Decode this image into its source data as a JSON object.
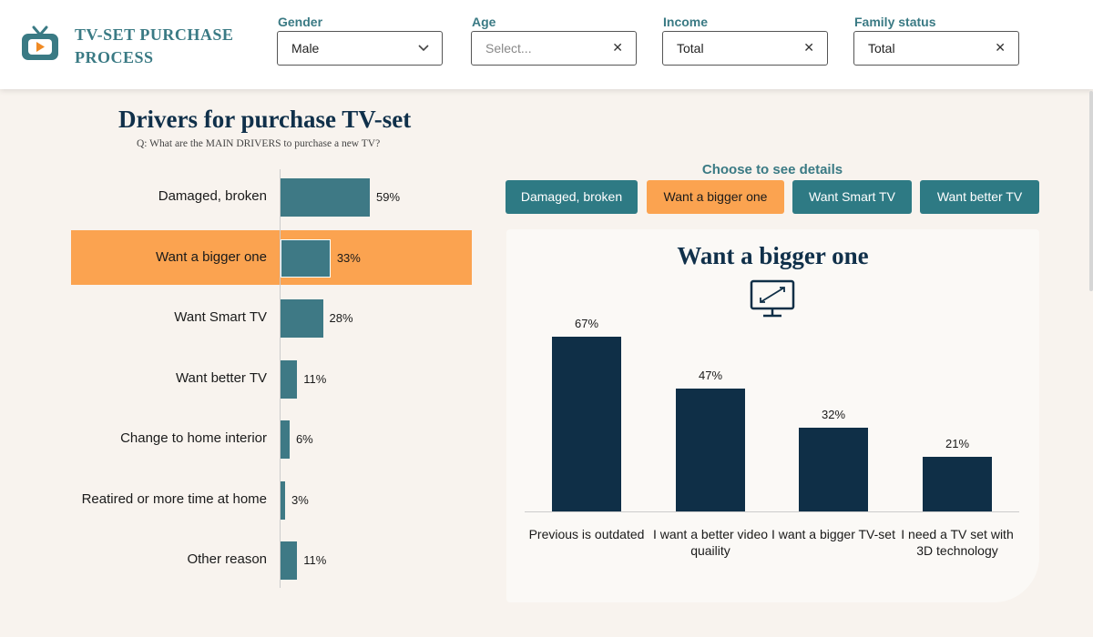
{
  "app": {
    "title": "TV-SET PURCHASE PROCESS",
    "logo_icon": "tv-play-icon"
  },
  "filters": [
    {
      "label": "Gender",
      "value": "Male",
      "placeholder": "",
      "control": "chevron-down-icon"
    },
    {
      "label": "Age",
      "value": "",
      "placeholder": "Select...",
      "control": "clear-icon"
    },
    {
      "label": "Income",
      "value": "Total",
      "placeholder": "",
      "control": "clear-icon"
    },
    {
      "label": "Family status",
      "value": "Total",
      "placeholder": "",
      "control": "clear-icon"
    }
  ],
  "drivers_chart": {
    "title": "Drivers for purchase TV-set",
    "subtitle": "Q: What are the MAIN DRIVERS to purchase a new TV?",
    "selected_index": 1,
    "items": [
      {
        "label": "Damaged, broken",
        "value": 59,
        "display": "59%"
      },
      {
        "label": "Want a bigger one",
        "value": 33,
        "display": "33%"
      },
      {
        "label": "Want Smart TV",
        "value": 28,
        "display": "28%"
      },
      {
        "label": "Want better TV",
        "value": 11,
        "display": "11%"
      },
      {
        "label": "Change to home interior",
        "value": 6,
        "display": "6%"
      },
      {
        "label": "Reatired or more time at home",
        "value": 3,
        "display": "3%"
      },
      {
        "label": "Other reason",
        "value": 11,
        "display": "11%"
      }
    ]
  },
  "details": {
    "choose_label": "Choose to see details",
    "buttons": [
      "Damaged, broken",
      "Want a bigger one",
      "Want Smart TV",
      "Want better TV"
    ],
    "active_button": 1,
    "title": "Want a bigger one",
    "icon": "monitor-resize-icon",
    "items": [
      {
        "label": "Previous is outdated",
        "value": 67,
        "display": "67%"
      },
      {
        "label": "I want a better video quaility",
        "value": 47,
        "display": "47%"
      },
      {
        "label": "I want a bigger TV-set",
        "value": 32,
        "display": "32%"
      },
      {
        "label": "I need a TV set with 3D technology",
        "value": 21,
        "display": "21%"
      }
    ]
  },
  "colors": {
    "accent_teal": "#3e7985",
    "button_teal": "#2e7a84",
    "highlight_orange": "#fba350",
    "dark_navy": "#0f2f47",
    "background": "#f8f3ee"
  },
  "chart_data": [
    {
      "type": "bar",
      "orientation": "horizontal",
      "title": "Drivers for purchase TV-set",
      "subtitle": "Q: What are the MAIN DRIVERS to purchase a new TV?",
      "categories": [
        "Damaged, broken",
        "Want a bigger one",
        "Want Smart TV",
        "Want better TV",
        "Change to home interior",
        "Reatired or more time at home",
        "Other reason"
      ],
      "values": [
        59,
        33,
        28,
        11,
        6,
        3,
        11
      ],
      "unit": "%"
    },
    {
      "type": "bar",
      "orientation": "vertical",
      "title": "Want a bigger one",
      "categories": [
        "Previous is outdated",
        "I want a better video quaility",
        "I want a bigger TV-set",
        "I need a TV set with 3D technology"
      ],
      "values": [
        67,
        47,
        32,
        21
      ],
      "unit": "%"
    }
  ]
}
